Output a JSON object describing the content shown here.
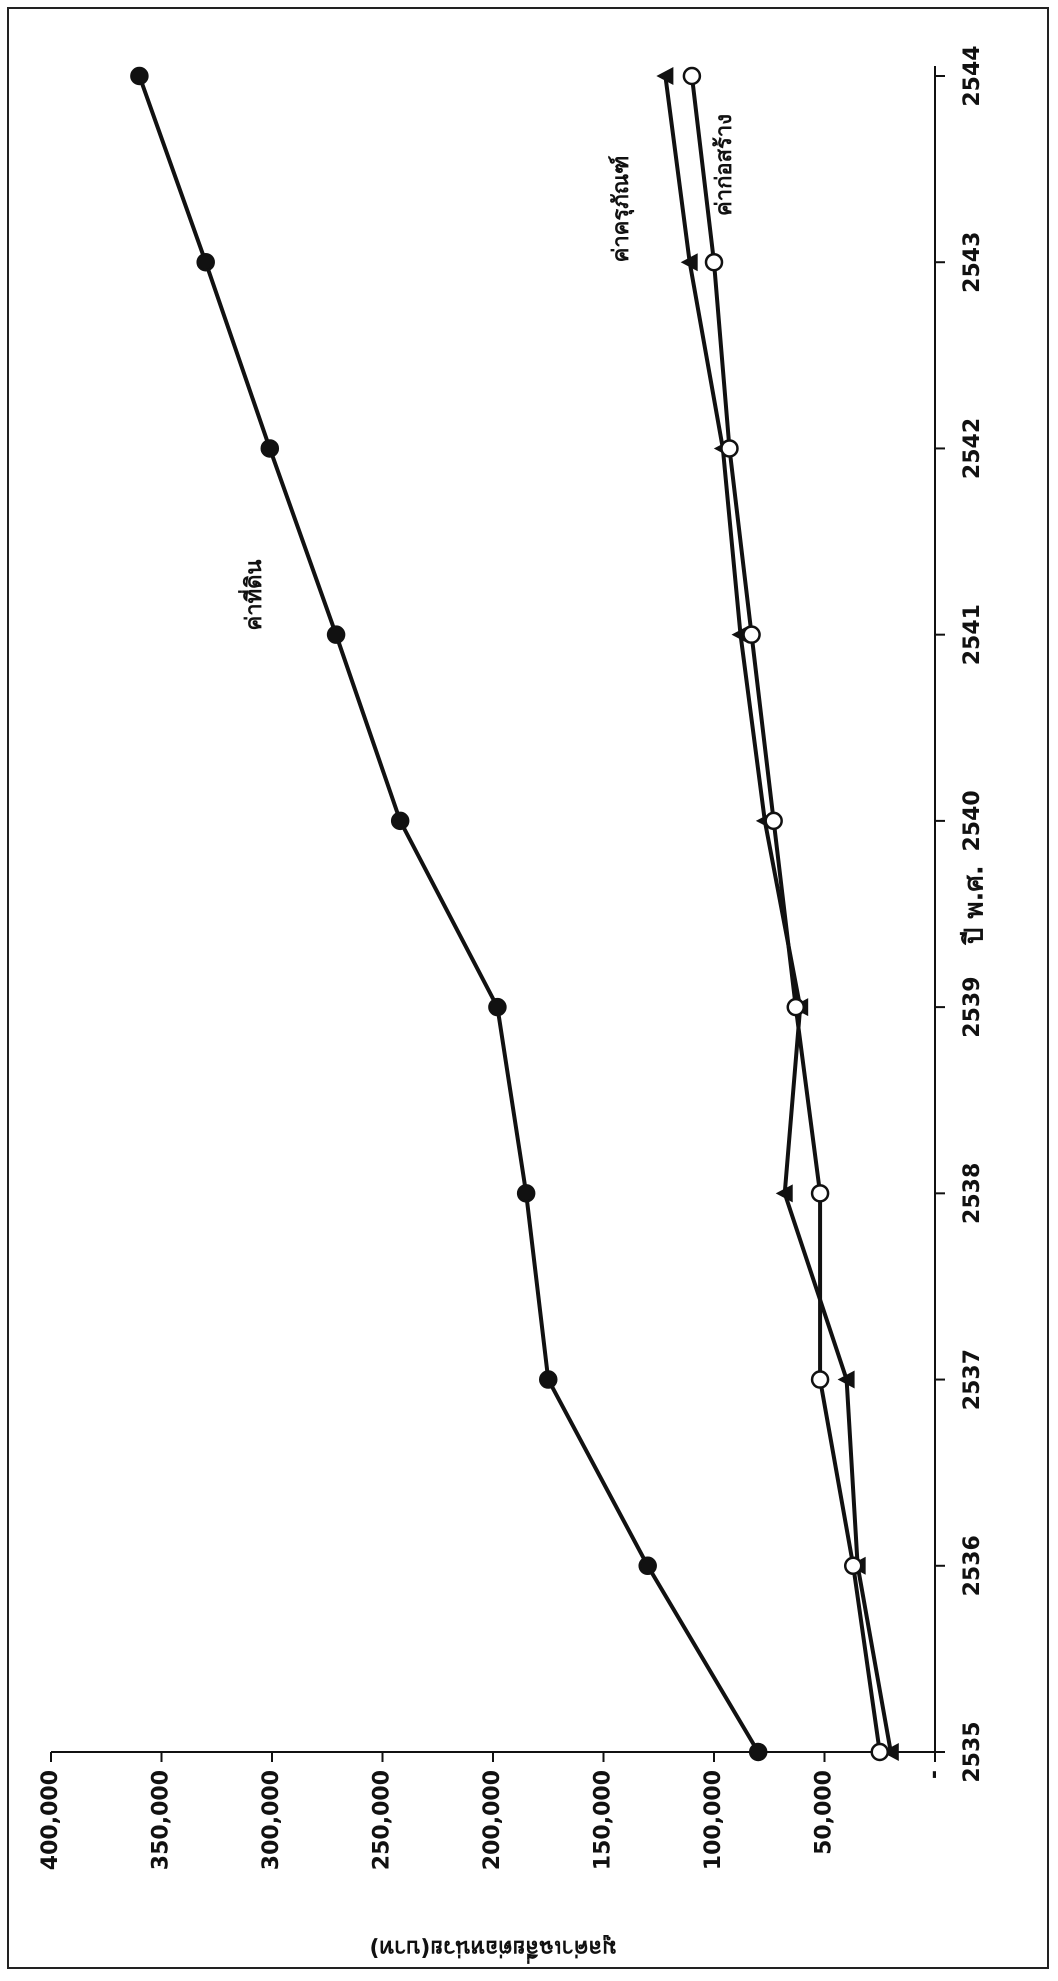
{
  "chart_data": {
    "type": "line",
    "y_label": "มูลค่าเฉลี่ยต่อหน่วย(บาท)",
    "x_label": "ปี พ.ศ.",
    "categories": [
      "2535",
      "2536",
      "2537",
      "2538",
      "2539",
      "2540",
      "2541",
      "2542",
      "2543",
      "2544"
    ],
    "series": [
      {
        "name": "ค่าที่ดิน",
        "color": "#111111",
        "marker": "filled-circle",
        "values": [
          80000,
          130000,
          175000,
          185000,
          198000,
          242000,
          271000,
          301000,
          330000,
          360000
        ]
      },
      {
        "name": "ค่าครุภัณฑ์",
        "color": "#111111",
        "marker": "triangle",
        "values": [
          20000,
          35000,
          40000,
          68000,
          61000,
          77000,
          88000,
          96000,
          111000,
          122000
        ]
      },
      {
        "name": "ค่าก่อสร้าง",
        "color": "#111111",
        "marker": "open-circle",
        "values": [
          25000,
          37000,
          52000,
          52000,
          63000,
          73000,
          83000,
          93000,
          100000,
          110000
        ]
      }
    ],
    "ylim": [
      0,
      400000
    ],
    "yticks": [
      {
        "value": 0,
        "label": "-"
      },
      {
        "value": 50000,
        "label": "50,000"
      },
      {
        "value": 100000,
        "label": "100,000"
      },
      {
        "value": 150000,
        "label": "150,000"
      },
      {
        "value": 200000,
        "label": "200,000"
      },
      {
        "value": 250000,
        "label": "250,000"
      },
      {
        "value": 300000,
        "label": "300,000"
      },
      {
        "value": 350000,
        "label": "350,000"
      },
      {
        "value": 400000,
        "label": "400,000"
      }
    ],
    "grid": false
  }
}
